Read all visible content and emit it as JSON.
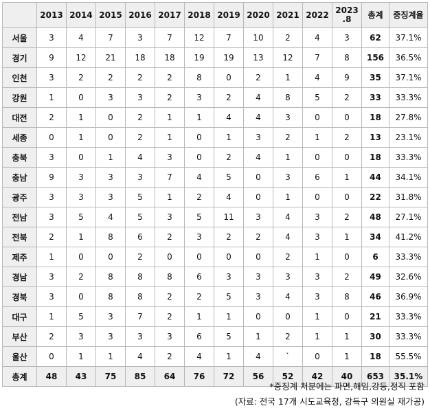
{
  "table": {
    "corner": "",
    "headers": [
      "2013",
      "2014",
      "2015",
      "2016",
      "2017",
      "2018",
      "2019",
      "2020",
      "2021",
      "2022",
      "2023\n.8",
      "총계",
      "중징계율"
    ],
    "rows": [
      {
        "region": "서울",
        "cells": [
          "3",
          "4",
          "7",
          "3",
          "7",
          "12",
          "7",
          "10",
          "2",
          "4",
          "3"
        ],
        "total": "62",
        "rate": "37.1%"
      },
      {
        "region": "경기",
        "cells": [
          "9",
          "12",
          "21",
          "18",
          "18",
          "19",
          "19",
          "13",
          "12",
          "7",
          "8"
        ],
        "total": "156",
        "rate": "36.5%"
      },
      {
        "region": "인천",
        "cells": [
          "3",
          "2",
          "2",
          "2",
          "2",
          "8",
          "0",
          "2",
          "1",
          "4",
          "9"
        ],
        "total": "35",
        "rate": "37.1%"
      },
      {
        "region": "강원",
        "cells": [
          "1",
          "0",
          "3",
          "3",
          "2",
          "3",
          "2",
          "4",
          "8",
          "5",
          "2"
        ],
        "total": "33",
        "rate": "33.3%"
      },
      {
        "region": "대전",
        "cells": [
          "2",
          "1",
          "0",
          "2",
          "1",
          "1",
          "4",
          "4",
          "3",
          "0",
          "0"
        ],
        "total": "18",
        "rate": "27.8%"
      },
      {
        "region": "세종",
        "cells": [
          "0",
          "1",
          "0",
          "2",
          "1",
          "0",
          "1",
          "3",
          "2",
          "1",
          "2"
        ],
        "total": "13",
        "rate": "23.1%"
      },
      {
        "region": "충북",
        "cells": [
          "3",
          "0",
          "1",
          "4",
          "3",
          "0",
          "2",
          "4",
          "1",
          "0",
          "0"
        ],
        "total": "18",
        "rate": "33.3%"
      },
      {
        "region": "충남",
        "cells": [
          "9",
          "3",
          "3",
          "3",
          "7",
          "4",
          "5",
          "0",
          "3",
          "6",
          "1"
        ],
        "total": "44",
        "rate": "34.1%"
      },
      {
        "region": "광주",
        "cells": [
          "3",
          "3",
          "3",
          "5",
          "1",
          "2",
          "4",
          "0",
          "1",
          "0",
          "0"
        ],
        "total": "22",
        "rate": "31.8%"
      },
      {
        "region": "전남",
        "cells": [
          "3",
          "5",
          "4",
          "5",
          "3",
          "5",
          "11",
          "3",
          "4",
          "3",
          "2"
        ],
        "total": "48",
        "rate": "27.1%"
      },
      {
        "region": "전북",
        "cells": [
          "2",
          "1",
          "8",
          "6",
          "2",
          "3",
          "2",
          "2",
          "4",
          "3",
          "1"
        ],
        "total": "34",
        "rate": "41.2%"
      },
      {
        "region": "제주",
        "cells": [
          "1",
          "0",
          "0",
          "2",
          "0",
          "0",
          "0",
          "0",
          "2",
          "1",
          "0"
        ],
        "total": "6",
        "rate": "33.3%"
      },
      {
        "region": "경남",
        "cells": [
          "3",
          "2",
          "8",
          "8",
          "8",
          "6",
          "3",
          "3",
          "3",
          "3",
          "2"
        ],
        "total": "49",
        "rate": "32.6%"
      },
      {
        "region": "경북",
        "cells": [
          "3",
          "0",
          "8",
          "8",
          "2",
          "2",
          "5",
          "3",
          "4",
          "3",
          "8"
        ],
        "total": "46",
        "rate": "36.9%"
      },
      {
        "region": "대구",
        "cells": [
          "1",
          "5",
          "3",
          "7",
          "2",
          "1",
          "1",
          "0",
          "0",
          "1",
          "0"
        ],
        "total": "21",
        "rate": "33.3%"
      },
      {
        "region": "부산",
        "cells": [
          "2",
          "3",
          "3",
          "3",
          "3",
          "6",
          "5",
          "1",
          "2",
          "1",
          "1"
        ],
        "total": "30",
        "rate": "33.3%"
      },
      {
        "region": "울산",
        "cells": [
          "0",
          "1",
          "1",
          "4",
          "2",
          "4",
          "1",
          "4",
          "`",
          "0",
          "1"
        ],
        "total": "18",
        "rate": "55.5%"
      }
    ],
    "footer": {
      "label": "총계",
      "cells": [
        "48",
        "43",
        "75",
        "85",
        "64",
        "76",
        "72",
        "56",
        "52",
        "42",
        "40"
      ],
      "total": "653",
      "rate": "35.1%"
    }
  },
  "notes": {
    "line1": "*중징계 처분에는 파면,해임,강등,정직 포함",
    "line2": "(자료: 전국 17개 시도교육청, 강득구 의원실 재가공)"
  }
}
